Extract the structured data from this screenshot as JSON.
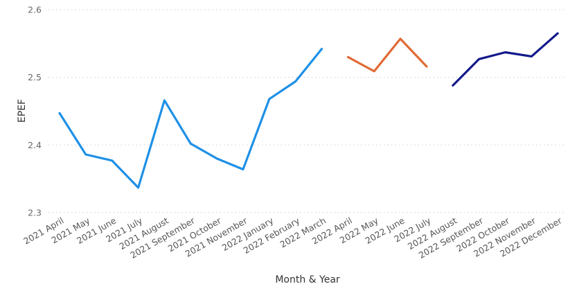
{
  "chart_data": {
    "type": "line",
    "xlabel": "Month & Year",
    "ylabel": "EPEF",
    "ylim": [
      2.3,
      2.6
    ],
    "yticks": [
      "2.3",
      "2.4",
      "2.5",
      "2.6"
    ],
    "grid": true,
    "categories": [
      "2021 April",
      "2021 May",
      "2021 June",
      "2021 July",
      "2021 August",
      "2021 September",
      "2021 October",
      "2021 November",
      "2022 January",
      "2022 February",
      "2022 March",
      "2022 April",
      "2022 May",
      "2022 June",
      "2022 July",
      "2022 August",
      "2022 September",
      "2022 October",
      "2022 November",
      "2022 December"
    ],
    "series": [
      {
        "color": "#1e90e6",
        "values": [
          2.447,
          2.386,
          2.377,
          2.337,
          2.466,
          2.402,
          2.38,
          2.364,
          2.468,
          2.494,
          2.542,
          null,
          null,
          null,
          null,
          null,
          null,
          null,
          null,
          null
        ]
      },
      {
        "color": "#e06a35",
        "values": [
          null,
          null,
          null,
          null,
          null,
          null,
          null,
          null,
          null,
          null,
          null,
          2.53,
          2.509,
          2.557,
          2.516,
          null,
          null,
          null,
          null,
          null
        ]
      },
      {
        "color": "#13198a",
        "values": [
          null,
          null,
          null,
          null,
          null,
          null,
          null,
          null,
          null,
          null,
          null,
          null,
          null,
          null,
          null,
          2.488,
          2.527,
          2.537,
          2.531,
          2.565
        ]
      }
    ]
  }
}
